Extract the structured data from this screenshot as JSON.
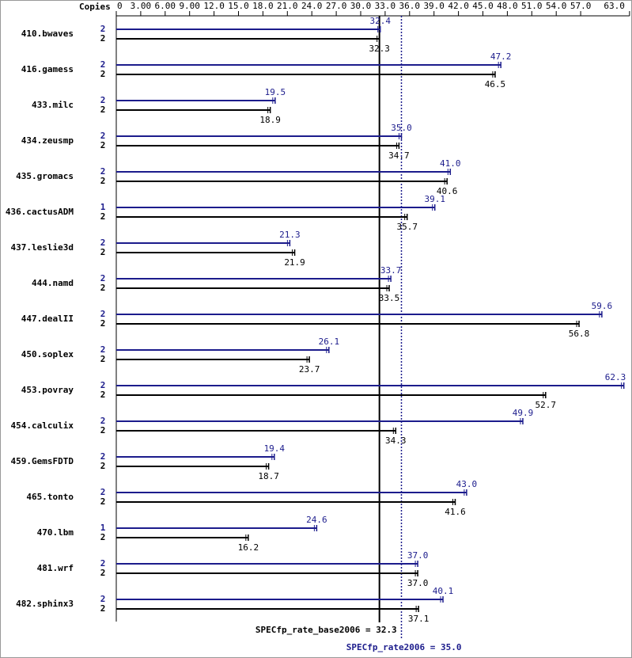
{
  "chart_data": {
    "type": "spec-bar",
    "copies_label": "Copies",
    "categories": [
      "410.bwaves",
      "416.gamess",
      "433.milc",
      "434.zeusmp",
      "435.gromacs",
      "436.cactusADM",
      "437.leslie3d",
      "444.namd",
      "447.dealII",
      "450.soplex",
      "453.povray",
      "454.calculix",
      "459.GemsFDTD",
      "465.tonto",
      "470.lbm",
      "481.wrf",
      "482.sphinx3"
    ],
    "series": [
      {
        "color": "#1c1c8c",
        "copies": [
          2,
          2,
          2,
          2,
          2,
          1,
          2,
          2,
          2,
          2,
          2,
          2,
          2,
          2,
          1,
          2,
          2
        ],
        "values": [
          32.4,
          47.2,
          19.5,
          35.0,
          41.0,
          39.1,
          21.3,
          33.7,
          59.6,
          26.1,
          62.3,
          49.9,
          19.4,
          43.0,
          24.6,
          37.0,
          40.1
        ],
        "value_labels": [
          "32.4",
          "47.2",
          "19.5",
          "35.0",
          "41.0",
          "39.1",
          "21.3",
          "33.7",
          "59.6",
          "26.1",
          "62.3",
          "49.9",
          "19.4",
          "43.0",
          "24.6",
          "37.0",
          "40.1"
        ]
      },
      {
        "color": "#000000",
        "copies": [
          2,
          2,
          2,
          2,
          2,
          2,
          2,
          2,
          2,
          2,
          2,
          2,
          2,
          2,
          2,
          2,
          2
        ],
        "values": [
          32.3,
          46.5,
          18.9,
          34.7,
          40.6,
          35.7,
          21.9,
          33.5,
          56.8,
          23.7,
          52.7,
          34.3,
          18.7,
          41.6,
          16.2,
          37.0,
          37.1
        ],
        "value_labels": [
          "32.3",
          "46.5",
          "18.9",
          "34.7",
          "40.6",
          "35.7",
          "21.9",
          "33.5",
          "56.8",
          "23.7",
          "52.7",
          "34.3",
          "18.7",
          "41.6",
          "16.2",
          "37.0",
          "37.1"
        ]
      }
    ],
    "xlim": [
      0,
      63
    ],
    "xticks": [
      0,
      {
        "value": 3,
        "label": "3.00"
      },
      {
        "value": 6,
        "label": "6.00"
      },
      {
        "value": 9,
        "label": "9.00"
      },
      {
        "value": 12,
        "label": "12.0"
      },
      {
        "value": 15,
        "label": "15.0"
      },
      {
        "value": 18,
        "label": "18.0"
      },
      {
        "value": 21,
        "label": "21.0"
      },
      {
        "value": 24,
        "label": "24.0"
      },
      {
        "value": 27,
        "label": "27.0"
      },
      {
        "value": 30,
        "label": "30.0"
      },
      {
        "value": 33,
        "label": "33.0"
      },
      {
        "value": 36,
        "label": "36.0"
      },
      {
        "value": 39,
        "label": "39.0"
      },
      {
        "value": 42,
        "label": "42.0"
      },
      {
        "value": 45,
        "label": "45.0"
      },
      {
        "value": 48,
        "label": "48.0"
      },
      {
        "value": 51,
        "label": "51.0"
      },
      {
        "value": 54,
        "label": "54.0"
      },
      {
        "value": 57,
        "label": "57.0"
      },
      {
        "value": 63,
        "label": "63.0"
      }
    ],
    "base_summary": {
      "label": "SPECfp_rate_base2006 = 32.3",
      "value": 32.3
    },
    "peak_summary": {
      "label": "SPECfp_rate2006 = 35.0",
      "value": 35.0
    }
  }
}
